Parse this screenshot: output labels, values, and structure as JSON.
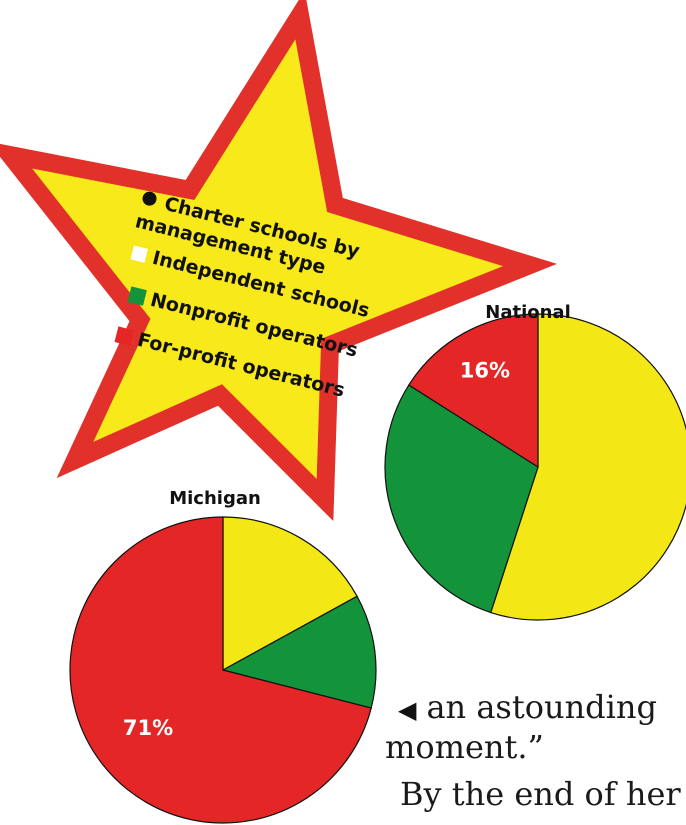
{
  "chart_data": {
    "type": "pie",
    "legend": {
      "title": "Charter schools by management type",
      "entries": [
        {
          "label": "Independent schools",
          "color": "#f3e716"
        },
        {
          "label": "Nonprofit operators",
          "color": "#13933a"
        },
        {
          "label": "For-profit operators",
          "color": "#e42626"
        }
      ]
    },
    "categories": [
      "Independent schools",
      "Nonprofit operators",
      "For-profit operators"
    ],
    "charts": [
      {
        "title": "National",
        "values": [
          55,
          29,
          16
        ],
        "labels": [
          "",
          "",
          "16%"
        ]
      },
      {
        "title": "Michigan",
        "values": [
          17,
          12,
          71
        ],
        "labels": [
          "",
          "",
          "71%"
        ]
      }
    ]
  },
  "text": {
    "line1": "an astounding",
    "line2": "moment.”",
    "line3": "By the end of her"
  },
  "colors": {
    "star_fill": "#f7e91a",
    "star_border": "#e2302a"
  }
}
